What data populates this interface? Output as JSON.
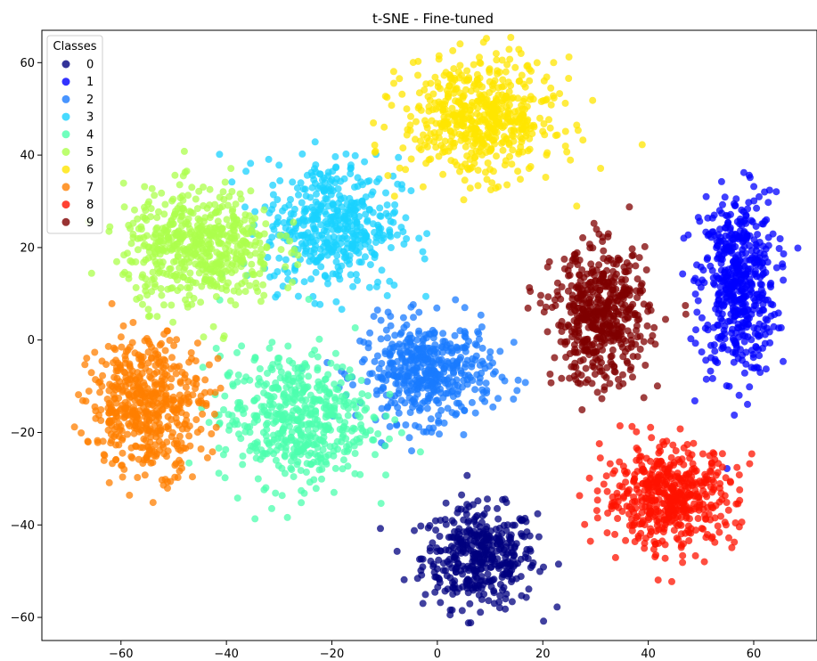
{
  "chart_data": {
    "type": "scatter",
    "title": "t-SNE - Fine-tuned",
    "xlabel": "",
    "ylabel": "",
    "xlim": [
      -75,
      72
    ],
    "ylim": [
      -65,
      67
    ],
    "x_ticks": [
      -60,
      -40,
      -20,
      0,
      20,
      40,
      60
    ],
    "y_ticks": [
      -60,
      -40,
      -20,
      0,
      20,
      40,
      60
    ],
    "x_tick_labels": [
      "−60",
      "−40",
      "−20",
      "0",
      "20",
      "40",
      "60"
    ],
    "y_tick_labels": [
      "−60",
      "−40",
      "−20",
      "0",
      "20",
      "40",
      "60"
    ],
    "grid": false,
    "legend": {
      "title": "Classes",
      "placement": "top-left"
    },
    "series": [
      {
        "name": "0",
        "color": "#00007f",
        "cluster": {
          "center": [
            8,
            -47
          ],
          "spread": [
            6,
            6
          ],
          "count": 420
        }
      },
      {
        "name": "1",
        "color": "#0000ff",
        "cluster": {
          "center": [
            57,
            12
          ],
          "spread": [
            4,
            11
          ],
          "count": 520
        }
      },
      {
        "name": "2",
        "color": "#1a7bff",
        "cluster": {
          "center": [
            -2,
            -7
          ],
          "spread": [
            7,
            6
          ],
          "count": 470
        }
      },
      {
        "name": "3",
        "color": "#19d1ff",
        "cluster": {
          "center": [
            -20,
            25
          ],
          "spread": [
            7,
            8
          ],
          "count": 470
        }
      },
      {
        "name": "4",
        "color": "#4cffad",
        "cluster": {
          "center": [
            -27,
            -17
          ],
          "spread": [
            8,
            8
          ],
          "count": 520
        }
      },
      {
        "name": "5",
        "color": "#acff4c",
        "cluster": {
          "center": [
            -45,
            20
          ],
          "spread": [
            8,
            7
          ],
          "count": 560
        }
      },
      {
        "name": "6",
        "color": "#ffe500",
        "cluster": {
          "center": [
            8,
            48
          ],
          "spread": [
            8,
            7
          ],
          "count": 560
        }
      },
      {
        "name": "7",
        "color": "#ff7f00",
        "cluster": {
          "center": [
            -55,
            -14
          ],
          "spread": [
            6,
            8
          ],
          "count": 520
        }
      },
      {
        "name": "8",
        "color": "#ff1300",
        "cluster": {
          "center": [
            44,
            -34
          ],
          "spread": [
            7,
            6
          ],
          "count": 520
        }
      },
      {
        "name": "9",
        "color": "#7f0000",
        "cluster": {
          "center": [
            31,
            5
          ],
          "spread": [
            5,
            8
          ],
          "count": 520
        }
      }
    ]
  }
}
